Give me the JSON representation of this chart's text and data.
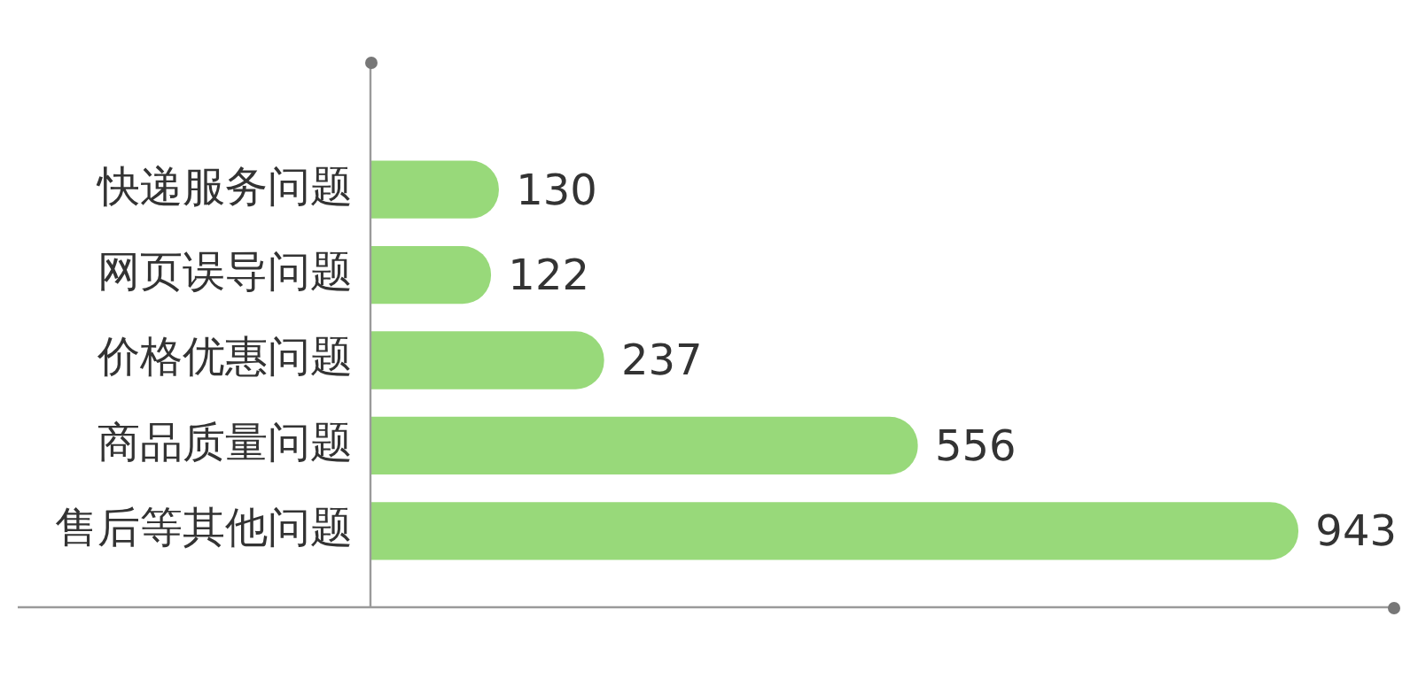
{
  "chart_data": {
    "type": "bar",
    "orientation": "horizontal",
    "categories": [
      "快递服务问题",
      "网页误导问题",
      "价格优惠问题",
      "商品质量问题",
      "售后等其他问题"
    ],
    "values": [
      130,
      122,
      237,
      556,
      943
    ],
    "color": "#98d97a",
    "data_labels": true,
    "xlim": [
      0,
      1040
    ],
    "tick_labels": "y",
    "grid": false,
    "legend": false
  }
}
